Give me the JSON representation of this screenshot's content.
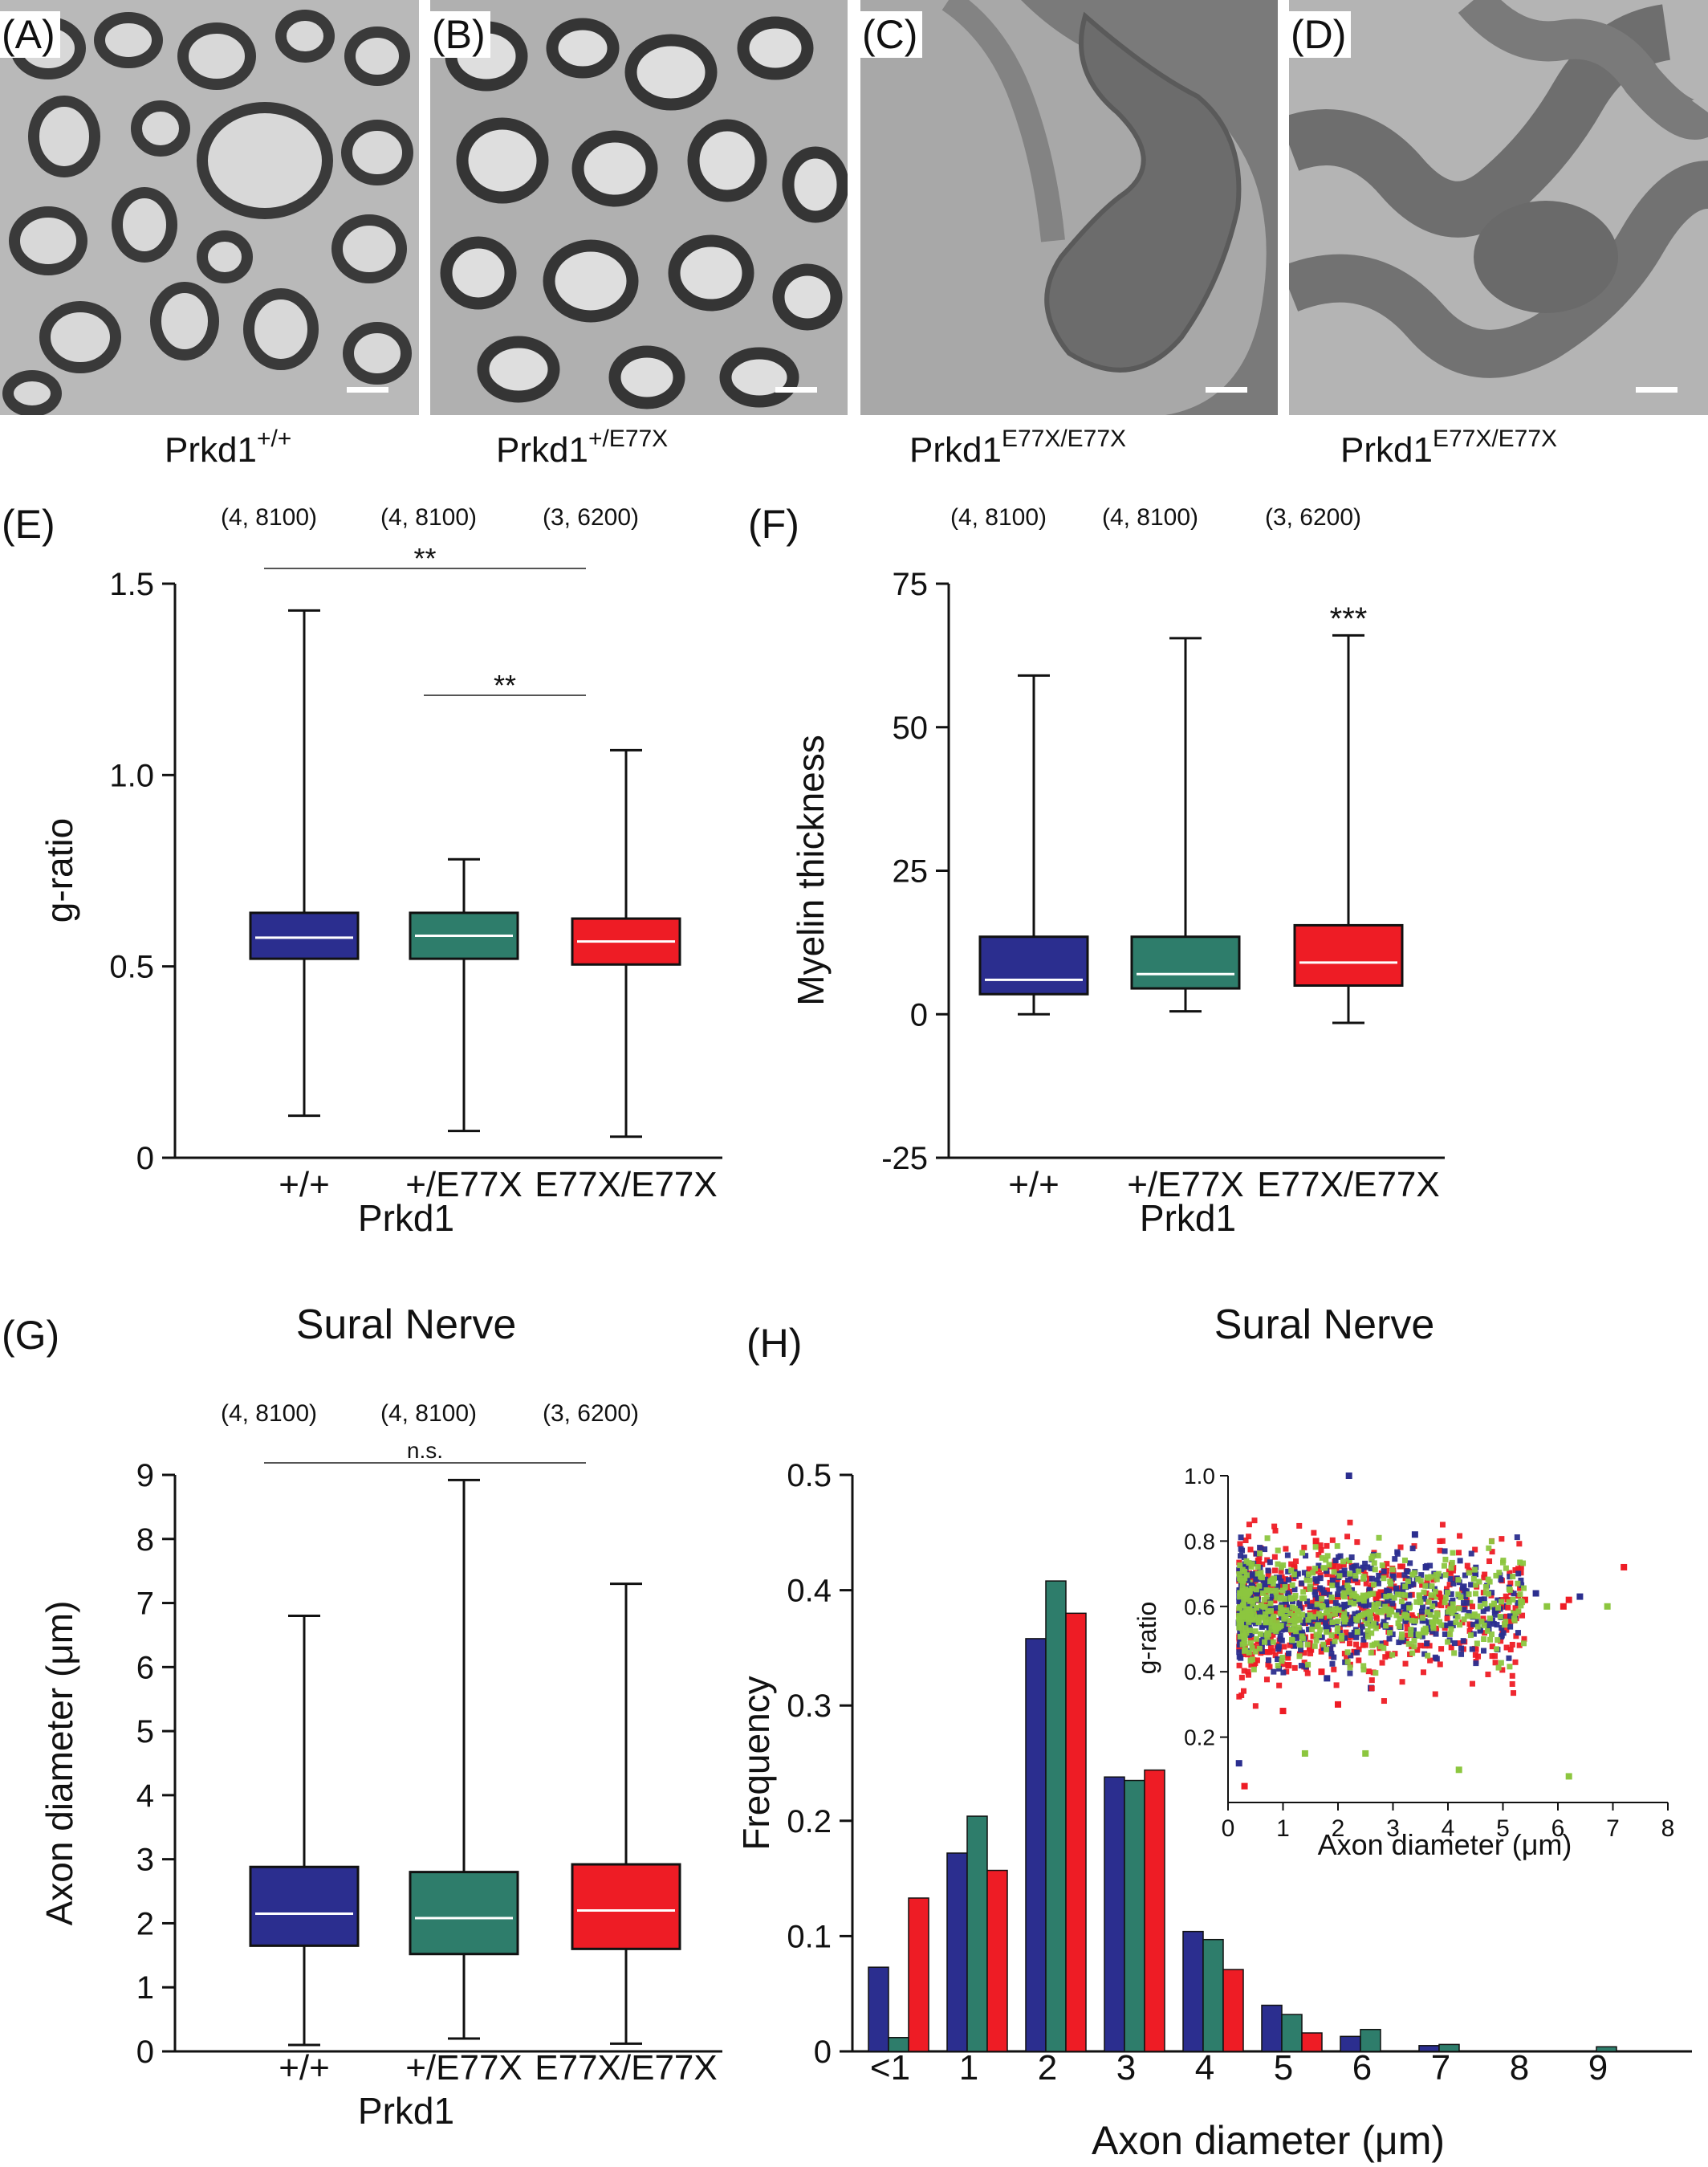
{
  "micrographs": [
    {
      "label": "(A)",
      "genotype_base": "Prkd1",
      "genotype_sup": "+/+",
      "style": "normal"
    },
    {
      "label": "(B)",
      "genotype_base": "Prkd1",
      "genotype_sup": "+/E77X",
      "style": "normal"
    },
    {
      "label": "(C)",
      "genotype_base": "Prkd1",
      "genotype_sup": "E77X/E77X",
      "style": "zoom1"
    },
    {
      "label": "(D)",
      "genotype_base": "Prkd1",
      "genotype_sup": "E77X/E77X",
      "style": "zoom2"
    }
  ],
  "colors": {
    "wt": "#2b2e8f",
    "het": "#2e7d6b",
    "hom": "#ee1c25",
    "green_scatter": "#8cc63f"
  },
  "chart_data": [
    {
      "panel": "(E)",
      "type": "box",
      "title": "",
      "xlabel": "Prkd1",
      "ylabel": "g-ratio",
      "ylim": [
        0,
        1.5
      ],
      "yticks": [
        "0",
        "0.5",
        "1.0",
        "1.5"
      ],
      "categories": [
        "+/+",
        "+/E77X",
        "E77X/E77X"
      ],
      "n_labels": [
        "(4, 8100)",
        "(4, 8100)",
        "(3, 6200)"
      ],
      "boxes": [
        {
          "min": 0.11,
          "q1": 0.52,
          "median": 0.575,
          "q3": 0.64,
          "max": 1.43
        },
        {
          "min": 0.07,
          "q1": 0.52,
          "median": 0.58,
          "q3": 0.64,
          "max": 0.78
        },
        {
          "min": 0.055,
          "q1": 0.505,
          "median": 0.565,
          "q3": 0.625,
          "max": 1.065
        }
      ],
      "significance": [
        {
          "from": 0,
          "to": 2,
          "label": "**"
        },
        {
          "from": 1,
          "to": 2,
          "label": "**"
        }
      ]
    },
    {
      "panel": "(F)",
      "type": "box",
      "title": "",
      "xlabel": "Prkd1",
      "ylabel": "Myelin thickness",
      "ylim": [
        -25,
        75
      ],
      "yticks": [
        "-25",
        "0",
        "25",
        "50",
        "75"
      ],
      "categories": [
        "+/+",
        "+/E77X",
        "E77X/E77X"
      ],
      "n_labels": [
        "(4, 8100)",
        "(4, 8100)",
        "(3, 6200)"
      ],
      "boxes": [
        {
          "min": 0,
          "q1": 3.5,
          "median": 6,
          "q3": 13.5,
          "max": 59
        },
        {
          "min": 0.5,
          "q1": 4.5,
          "median": 7,
          "q3": 13.5,
          "max": 65.5
        },
        {
          "min": -1.5,
          "q1": 5,
          "median": 9,
          "q3": 15.5,
          "max": 66
        }
      ],
      "annotations": [
        {
          "category": 2,
          "label": "***"
        }
      ]
    },
    {
      "panel": "(G)",
      "type": "box",
      "title": "Sural Nerve",
      "xlabel": "Prkd1",
      "ylabel": "Axon diameter (μm)",
      "ylim": [
        0,
        9
      ],
      "yticks": [
        "0",
        "1",
        "2",
        "3",
        "4",
        "5",
        "6",
        "7",
        "8",
        "9"
      ],
      "categories": [
        "+/+",
        "+/E77X",
        "E77X/E77X"
      ],
      "n_labels": [
        "(4, 8100)",
        "(4, 8100)",
        "(3, 6200)"
      ],
      "boxes": [
        {
          "min": 0.1,
          "q1": 1.65,
          "median": 2.15,
          "q3": 2.88,
          "max": 6.8
        },
        {
          "min": 0.2,
          "q1": 1.52,
          "median": 2.08,
          "q3": 2.8,
          "max": 8.92
        },
        {
          "min": 0.12,
          "q1": 1.6,
          "median": 2.2,
          "q3": 2.92,
          "max": 7.3
        }
      ],
      "significance": [
        {
          "from": 0,
          "to": 2,
          "label": "n.s."
        }
      ]
    },
    {
      "panel": "(H)",
      "type": "bar",
      "title": "Sural Nerve",
      "xlabel": "Axon diameter (μm)",
      "ylabel": "Frequency",
      "ylim": [
        0,
        0.5
      ],
      "yticks": [
        "0",
        "0.1",
        "0.2",
        "0.3",
        "0.4",
        "0.5"
      ],
      "categories": [
        "<1",
        "1",
        "2",
        "3",
        "4",
        "5",
        "6",
        "7",
        "8",
        "9"
      ],
      "series": [
        {
          "values": [
            0.073,
            0.172,
            0.358,
            0.238,
            0.104,
            0.04,
            0.013,
            0.005,
            0,
            0
          ]
        },
        {
          "values": [
            0.012,
            0.204,
            0.408,
            0.235,
            0.097,
            0.032,
            0.019,
            0.006,
            0,
            0.004
          ]
        },
        {
          "values": [
            0.133,
            0.157,
            0.38,
            0.244,
            0.071,
            0.016,
            0,
            0,
            0,
            0
          ]
        }
      ],
      "inset": {
        "type": "scatter",
        "xlabel": "Axon diameter (μm)",
        "ylabel": "g-ratio",
        "xlim": [
          0,
          8
        ],
        "ylim": [
          0,
          1.0
        ],
        "xticks": [
          "0",
          "1",
          "2",
          "3",
          "4",
          "5",
          "6",
          "7",
          "8"
        ],
        "yticks": [
          "0.2",
          "0.4",
          "0.6",
          "0.8",
          "1.0"
        ],
        "series": [
          {
            "color": "green",
            "points": [
              [
                0.3,
                0.62
              ],
              [
                0.6,
                0.58
              ],
              [
                0.9,
                0.64
              ],
              [
                1.1,
                0.55
              ],
              [
                1.3,
                0.6
              ],
              [
                1.5,
                0.66
              ],
              [
                1.7,
                0.57
              ],
              [
                1.9,
                0.62
              ],
              [
                2.1,
                0.59
              ],
              [
                2.3,
                0.63
              ],
              [
                2.5,
                0.56
              ],
              [
                2.7,
                0.61
              ],
              [
                2.9,
                0.58
              ],
              [
                3.1,
                0.65
              ],
              [
                3.3,
                0.6
              ],
              [
                3.5,
                0.57
              ],
              [
                3.8,
                0.63
              ],
              [
                4.1,
                0.59
              ],
              [
                4.4,
                0.61
              ],
              [
                4.8,
                0.6
              ],
              [
                5.2,
                0.58
              ],
              [
                5.8,
                0.6
              ],
              [
                6.9,
                0.6
              ],
              [
                1.4,
                0.15
              ],
              [
                2.5,
                0.15
              ],
              [
                4.2,
                0.1
              ],
              [
                6.2,
                0.08
              ],
              [
                1.2,
                0.72
              ],
              [
                2.2,
                0.74
              ],
              [
                0.4,
                0.68
              ]
            ]
          },
          {
            "color": "blue",
            "points": [
              [
                0.2,
                0.55
              ],
              [
                0.7,
                0.6
              ],
              [
                1.2,
                0.48
              ],
              [
                1.6,
                0.62
              ],
              [
                2.0,
                0.58
              ],
              [
                2.4,
                0.52
              ],
              [
                2.8,
                0.64
              ],
              [
                3.2,
                0.6
              ],
              [
                3.6,
                0.72
              ],
              [
                4.0,
                0.58
              ],
              [
                4.6,
                0.62
              ],
              [
                5.0,
                0.6
              ],
              [
                5.6,
                0.64
              ],
              [
                6.4,
                0.63
              ],
              [
                2.2,
                1.0
              ],
              [
                1.8,
                0.38
              ],
              [
                2.6,
                0.35
              ],
              [
                0.2,
                0.12
              ],
              [
                3.4,
                0.82
              ],
              [
                3.0,
                0.7
              ]
            ]
          },
          {
            "color": "red",
            "points": [
              [
                0.5,
                0.62
              ],
              [
                0.9,
                0.48
              ],
              [
                1.1,
                0.42
              ],
              [
                1.4,
                0.55
              ],
              [
                1.7,
                0.4
              ],
              [
                2.0,
                0.63
              ],
              [
                2.3,
                0.46
              ],
              [
                2.6,
                0.58
              ],
              [
                3.0,
                0.6
              ],
              [
                3.4,
                0.56
              ],
              [
                3.9,
                0.62
              ],
              [
                4.3,
                0.6
              ],
              [
                4.9,
                0.59
              ],
              [
                5.4,
                0.62
              ],
              [
                6.1,
                0.6
              ],
              [
                7.2,
                0.72
              ],
              [
                1.0,
                0.28
              ],
              [
                2.0,
                0.3
              ],
              [
                0.3,
                0.05
              ],
              [
                1.6,
                0.8
              ],
              [
                6.2,
                0.62
              ],
              [
                2.8,
                0.7
              ]
            ]
          }
        ]
      }
    }
  ]
}
